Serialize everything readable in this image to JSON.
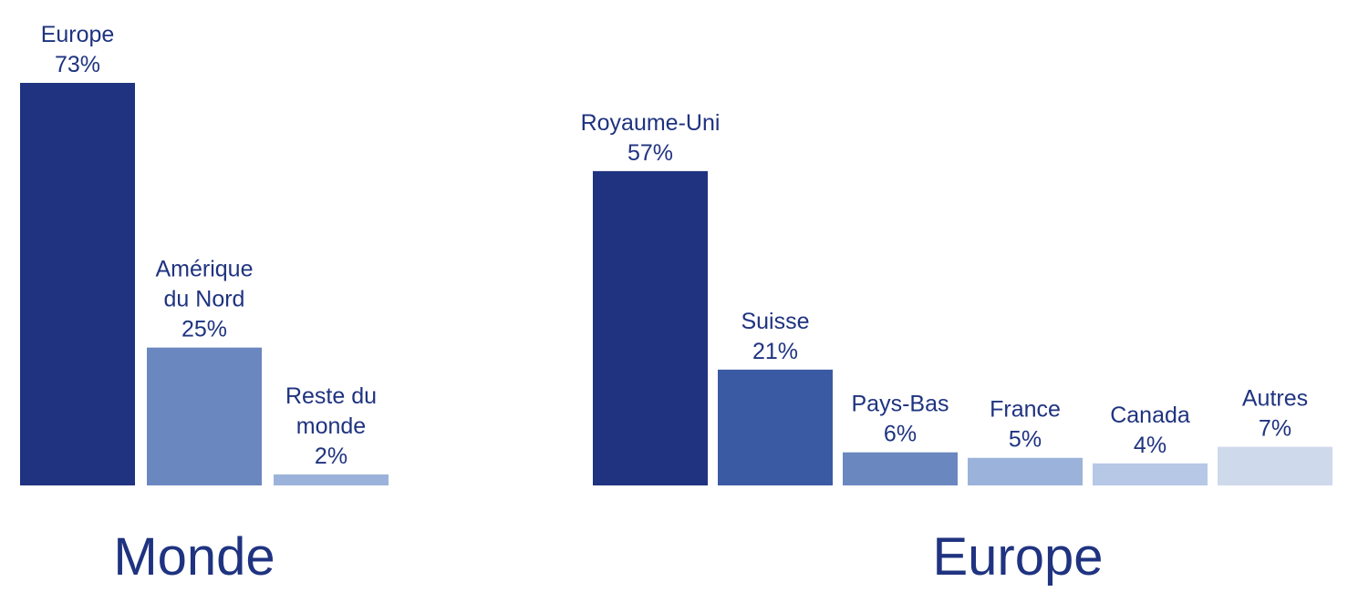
{
  "chart_data": [
    {
      "type": "bar",
      "title": "Monde",
      "categories": [
        "Europe",
        "Amérique du Nord",
        "Reste du monde"
      ],
      "category_lines": [
        [
          "Europe"
        ],
        [
          "Amérique",
          "du Nord"
        ],
        [
          "Reste du",
          "monde"
        ]
      ],
      "values": [
        73,
        25,
        2
      ],
      "value_labels": [
        "73%",
        "25%",
        "2%"
      ],
      "unit": "%",
      "ylim": [
        0,
        73
      ],
      "grid": false,
      "colors": [
        "#1f3380",
        "#6a87c0",
        "#9bb3da"
      ]
    },
    {
      "type": "bar",
      "title": "Europe",
      "categories": [
        "Royaume-Uni",
        "Suisse",
        "Pays-Bas",
        "France",
        "Canada",
        "Autres"
      ],
      "category_lines": [
        [
          "Royaume-Uni"
        ],
        [
          "Suisse"
        ],
        [
          "Pays-Bas"
        ],
        [
          "France"
        ],
        [
          "Canada"
        ],
        [
          "Autres"
        ]
      ],
      "values": [
        57,
        21,
        6,
        5,
        4,
        7
      ],
      "value_labels": [
        "57%",
        "21%",
        "6%",
        "5%",
        "4%",
        "7%"
      ],
      "unit": "%",
      "ylim": [
        0,
        73
      ],
      "grid": false,
      "colors": [
        "#1f3380",
        "#3a5aa3",
        "#6a87c0",
        "#9bb3da",
        "#b7c8e6",
        "#cfd9ec"
      ]
    }
  ]
}
